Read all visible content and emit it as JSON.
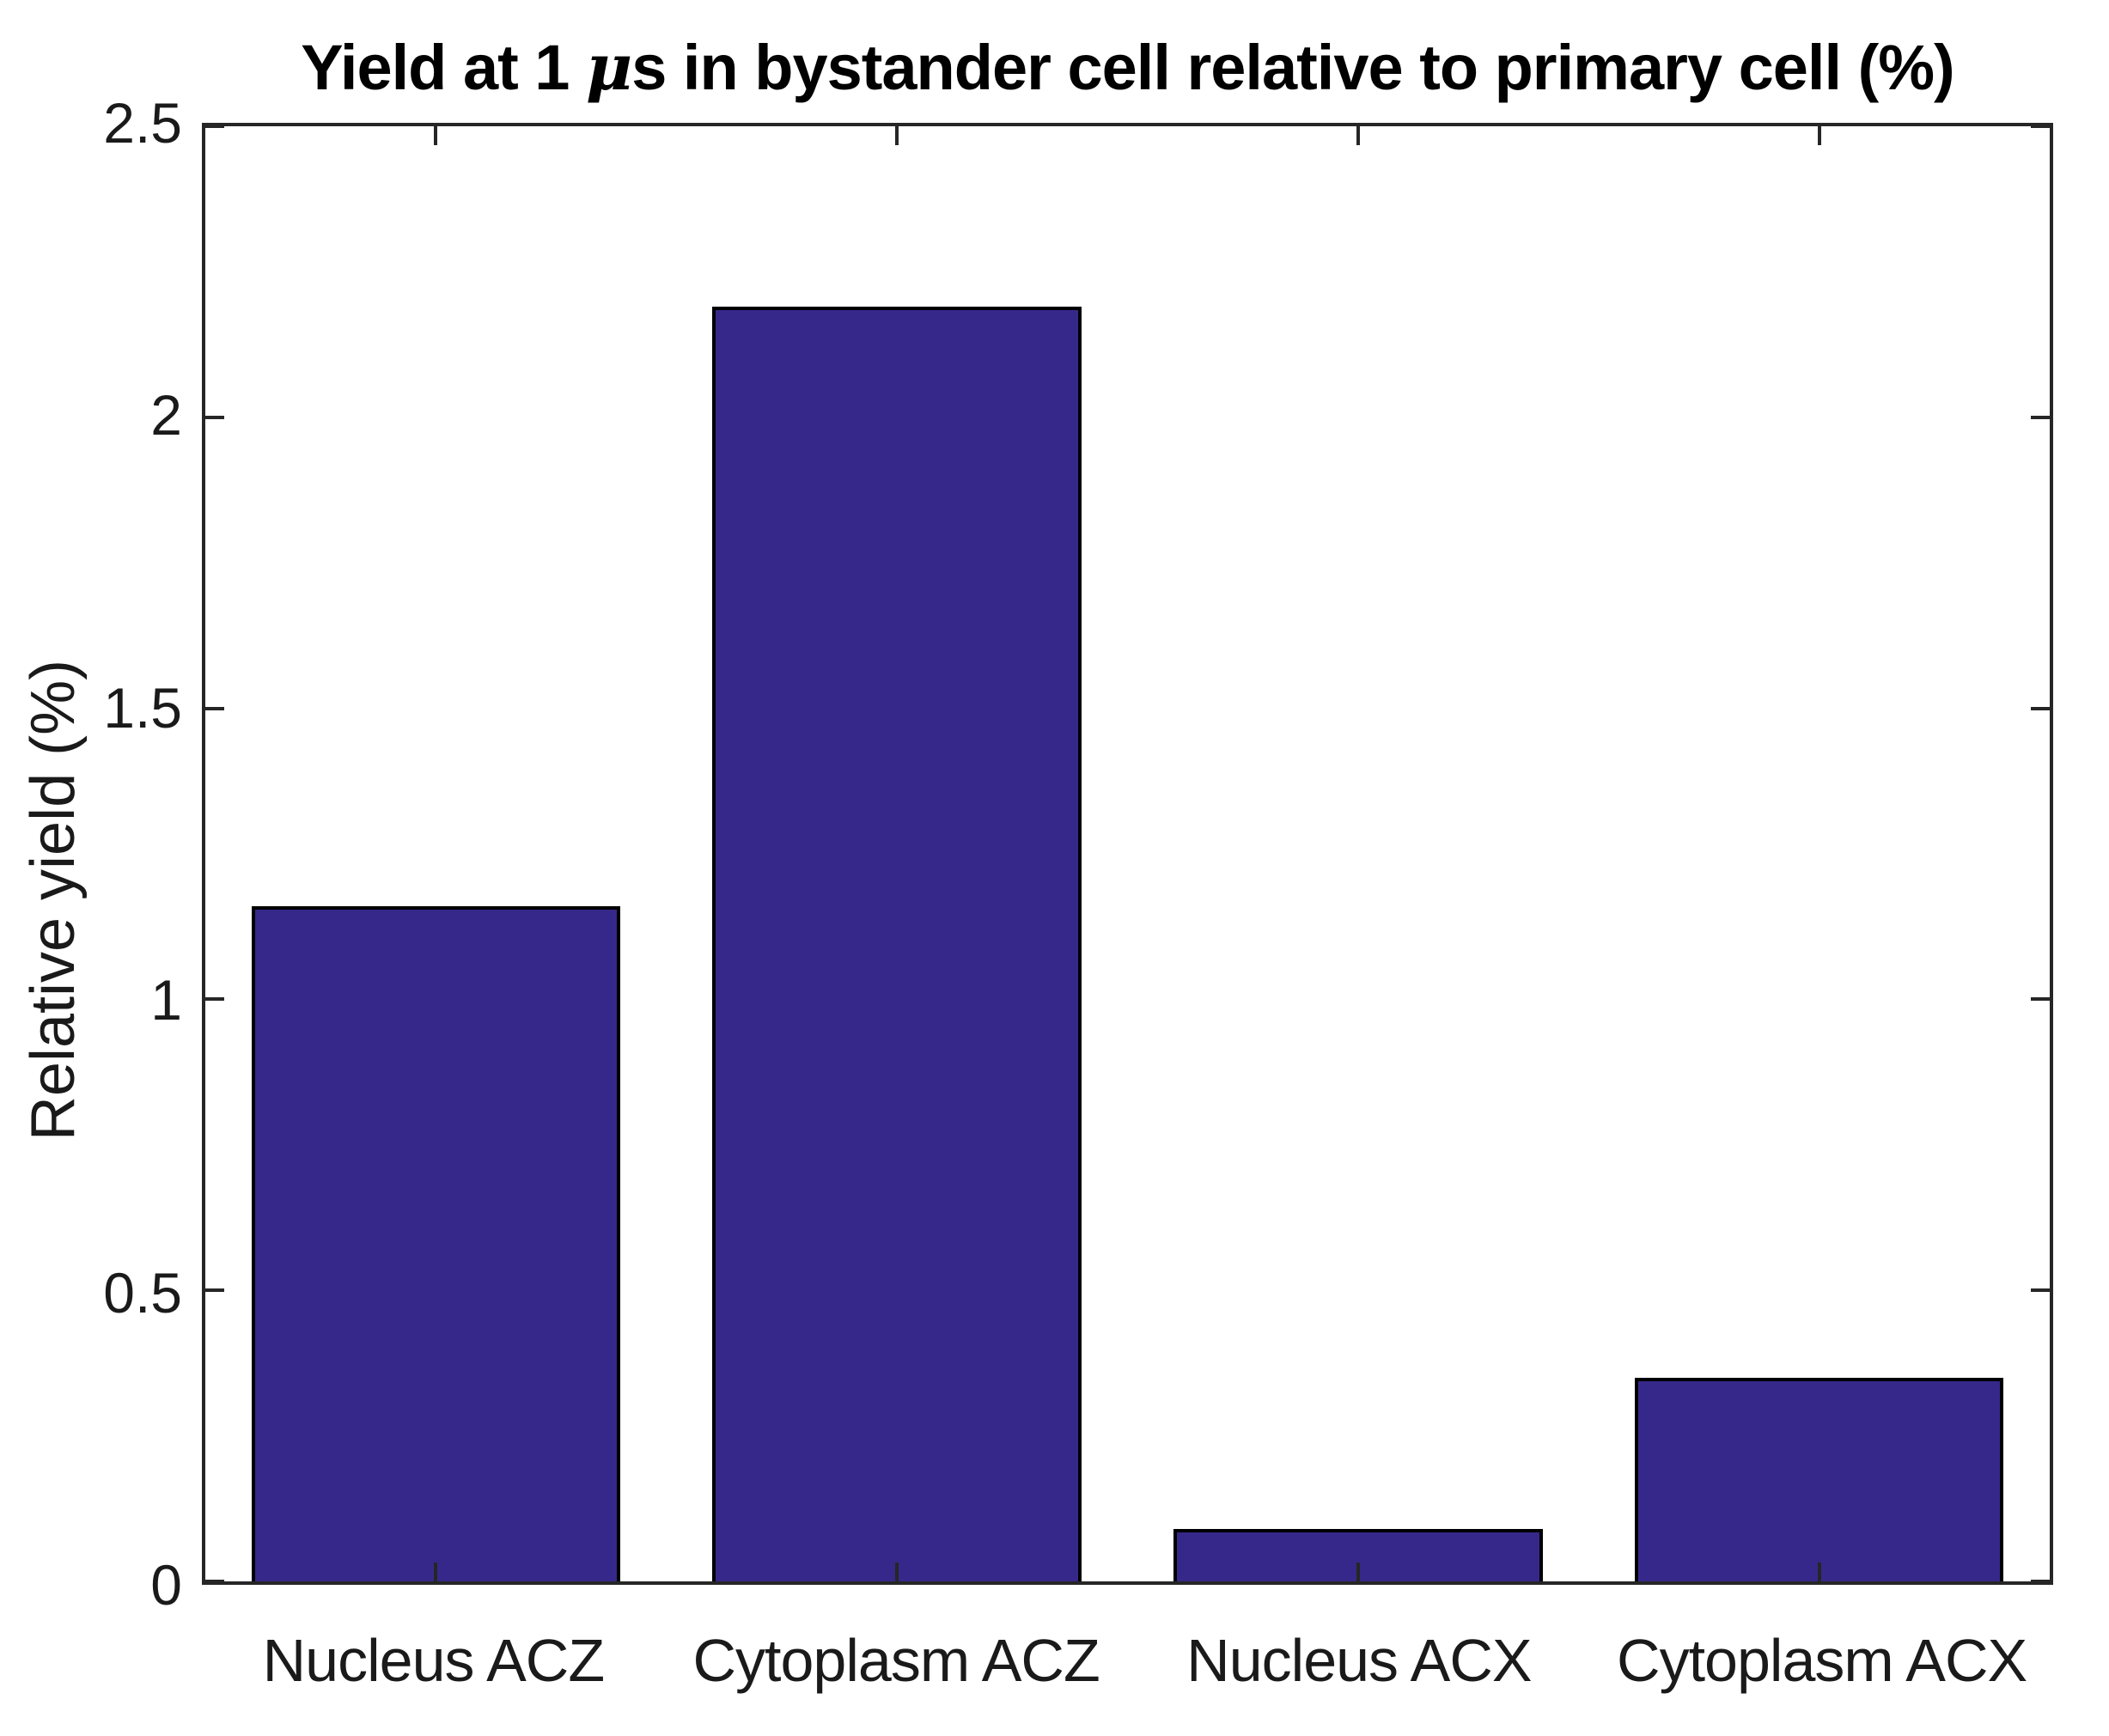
{
  "title": {
    "prefix": "Yield at 1 ",
    "mu": "μ",
    "suffix": "s in bystander cell relative to primary cell (%)"
  },
  "chart_data": {
    "type": "bar",
    "title": "Yield at 1 μs in bystander cell relative to primary cell (%)",
    "categories": [
      "Nucleus ACZ",
      "Cytoplasm ACZ",
      "Nucleus ACX",
      "Cytoplasm ACX"
    ],
    "values": [
      1.16,
      2.19,
      0.09,
      0.35
    ],
    "xlabel": "",
    "ylabel": "Relative yield (%)",
    "ylim": [
      0,
      2.5
    ],
    "yticks": [
      0,
      0.5,
      1,
      1.5,
      2,
      2.5
    ],
    "ytick_labels": [
      "0",
      "0.5",
      "1",
      "1.5",
      "2",
      "2.5"
    ],
    "bar_width_fraction": 0.8,
    "bar_color": "#36288A",
    "bar_edge_color": "#000000",
    "axis_color": "#262626",
    "background_color": "#FFFFFF",
    "grid": false,
    "legend": false,
    "tick_direction": "in"
  }
}
